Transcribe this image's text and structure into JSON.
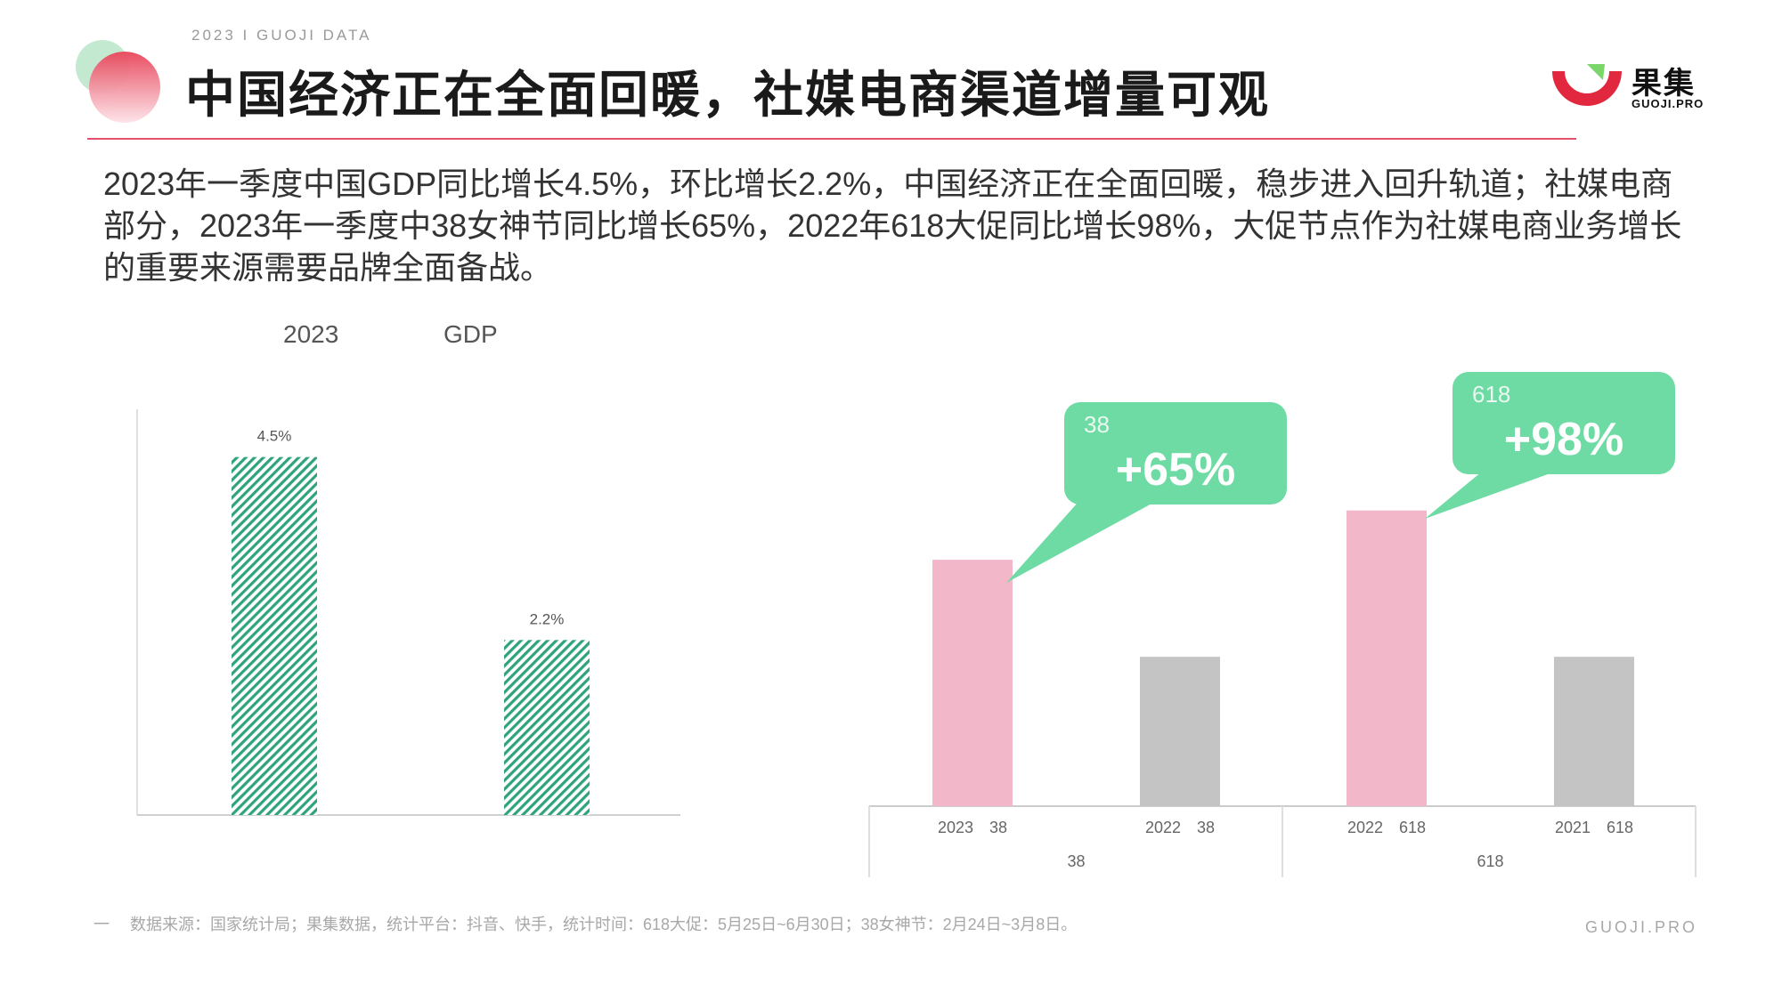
{
  "header": {
    "eyebrow": "2023 I GUOJI DATA",
    "title": "中国经济正在全面回暖，社媒电商渠道增量可观",
    "logo_text": "果集",
    "logo_sub": "GUOJI.PRO"
  },
  "summary": "2023年一季度中国GDP同比增长4.5%，环比增长2.2%，中国经济正在全面回暖，稳步进入回升轨道；社媒电商部分，2023年一季度中38女神节同比增长65%，2022年618大促同比增长98%，大促节点作为社媒电商业务增长的重要来源需要品牌全面备战。",
  "left_chart_labels": {
    "a": "2023",
    "b": "GDP"
  },
  "colors": {
    "accent": "#e2506a",
    "green": "#2fa37c",
    "pink": "#f2b8c9",
    "gray": "#c4c4c4",
    "bubble": "#6ddba3"
  },
  "chart_data": [
    {
      "type": "bar",
      "title": "",
      "categories": [
        "",
        ""
      ],
      "values": [
        4.5,
        2.2
      ],
      "value_labels": [
        "4.5%",
        "2.2%"
      ],
      "ylim": [
        0,
        5.1
      ],
      "pattern": "diagonal-hatch",
      "color": "#2fa37c"
    },
    {
      "type": "bar",
      "categories": [
        "2023　38",
        "2022　38",
        "2022　618",
        "2021　618"
      ],
      "groups": [
        {
          "label": "38",
          "span": [
            0,
            1
          ]
        },
        {
          "label": "618",
          "span": [
            2,
            3
          ]
        }
      ],
      "values": [
        165,
        100,
        198,
        100
      ],
      "ylim": [
        0,
        230
      ],
      "colors": [
        "#f2b8c9",
        "#c4c4c4",
        "#f2b8c9",
        "#c4c4c4"
      ],
      "annotations": [
        {
          "target": 0,
          "small": "38",
          "big": "+65%"
        },
        {
          "target": 2,
          "small": "618",
          "big": "+98%"
        }
      ]
    }
  ],
  "footer": {
    "dash": "一",
    "source": "数据来源：国家统计局；果集数据，统计平台：抖音、快手，统计时间：618大促：5月25日~6月30日；38女神节：2月24日~3月8日。",
    "site": "GUOJI.PRO"
  }
}
